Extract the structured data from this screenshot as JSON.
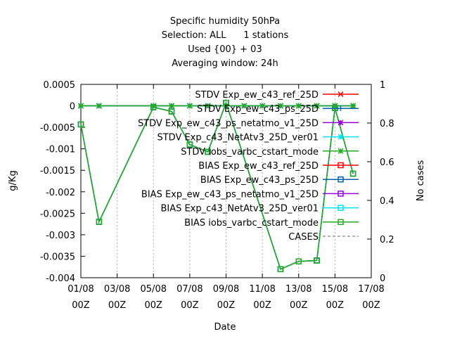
{
  "chart_data": {
    "type": "line",
    "title_lines": [
      "Specific humidity 50hPa",
      "Selection: ALL      1 stations",
      "Used {00} + 03",
      "Averaging window: 24h"
    ],
    "xlabel": "Date",
    "ylabel": "g/Kg",
    "y2label": "No cases",
    "ylim": [
      -0.004,
      0.0005
    ],
    "y2lim": [
      0,
      1
    ],
    "xlim": [
      0,
      16
    ],
    "yticks": [
      {
        "v": 0.0005,
        "label": "0.0005"
      },
      {
        "v": 0,
        "label": "0"
      },
      {
        "v": -0.0005,
        "label": "-0.0005"
      },
      {
        "v": -0.001,
        "label": "-0.001"
      },
      {
        "v": -0.0015,
        "label": "-0.0015"
      },
      {
        "v": -0.002,
        "label": "-0.002"
      },
      {
        "v": -0.0025,
        "label": "-0.0025"
      },
      {
        "v": -0.003,
        "label": "-0.003"
      },
      {
        "v": -0.0035,
        "label": "-0.0035"
      },
      {
        "v": -0.004,
        "label": "-0.004"
      }
    ],
    "y2ticks": [
      {
        "v": 1,
        "label": "1"
      },
      {
        "v": 0.8,
        "label": "0.8"
      },
      {
        "v": 0.6,
        "label": "0.6"
      },
      {
        "v": 0.4,
        "label": "0.4"
      },
      {
        "v": 0.2,
        "label": "0.2"
      },
      {
        "v": 0,
        "label": "0"
      }
    ],
    "xticks": [
      {
        "v": 0,
        "line1": "01/08",
        "line2": "00Z"
      },
      {
        "v": 2,
        "line1": "03/08",
        "line2": "00Z"
      },
      {
        "v": 4,
        "line1": "05/08",
        "line2": "00Z"
      },
      {
        "v": 6,
        "line1": "07/08",
        "line2": "00Z"
      },
      {
        "v": 8,
        "line1": "09/08",
        "line2": "00Z"
      },
      {
        "v": 10,
        "line1": "11/08",
        "line2": "00Z"
      },
      {
        "v": 12,
        "line1": "13/08",
        "line2": "00Z"
      },
      {
        "v": 14,
        "line1": "15/08",
        "line2": "00Z"
      },
      {
        "v": 16,
        "line1": "17/08",
        "line2": "00Z"
      }
    ],
    "stdv_x": [
      0,
      1,
      4,
      5,
      6,
      7,
      8,
      9,
      10,
      11,
      12,
      13,
      14,
      15
    ],
    "stdv_y": [
      0,
      0,
      0,
      0,
      0,
      0,
      0,
      0,
      0,
      0,
      0,
      0,
      0,
      0
    ],
    "bias_x": [
      0,
      1,
      4,
      5,
      6,
      7,
      8,
      11,
      12,
      13,
      14,
      15
    ],
    "bias_y": [
      -0.00043,
      -0.0027,
      -3e-05,
      -0.00013,
      -0.0009,
      -0.00107,
      7e-05,
      -0.0038,
      -0.00362,
      -0.0036,
      -5e-05,
      -0.00158
    ],
    "series": [
      {
        "name": "STDV Exp_ew_c43_ref_25D",
        "color": "#ff0000",
        "marker": "x",
        "kind": "stdv"
      },
      {
        "name": "STDV Exp_ew_c43_ps_25D",
        "color": "#0060ad",
        "marker": "+",
        "kind": "stdv"
      },
      {
        "name": "STDV Exp_ew_c43_ps_netatmo_v1_25D",
        "color": "#9400d3",
        "marker": "star",
        "kind": "stdv"
      },
      {
        "name": "STDV Exp_c43_NetAtv3_25D_ver01",
        "color": "#00e5ee",
        "marker": "star",
        "kind": "stdv"
      },
      {
        "name": "STDV iobs_varbc_cstart_mode",
        "color": "#22aa22",
        "marker": "star",
        "kind": "stdv"
      },
      {
        "name": "BIAS Exp_ew_c43_ref_25D",
        "color": "#ff0000",
        "marker": "square",
        "kind": "bias"
      },
      {
        "name": "BIAS Exp_ew_c43_ps_25D",
        "color": "#0060ad",
        "marker": "square",
        "kind": "bias"
      },
      {
        "name": "BIAS Exp_ew_c43_ps_netatmo_v1_25D",
        "color": "#9400d3",
        "marker": "square",
        "kind": "bias"
      },
      {
        "name": "BIAS Exp_c43_NetAtv3_25D_ver01",
        "color": "#00e5ee",
        "marker": "square",
        "kind": "bias"
      },
      {
        "name": "BIAS iobs_varbc_cstart_mode",
        "color": "#22aa22",
        "marker": "square",
        "kind": "bias"
      },
      {
        "name": "CASES",
        "color": "#999999",
        "marker": "none",
        "kind": "cases"
      }
    ],
    "grid": "dashed vertical at x ticks",
    "legend_placement": "top-right inside plot"
  }
}
